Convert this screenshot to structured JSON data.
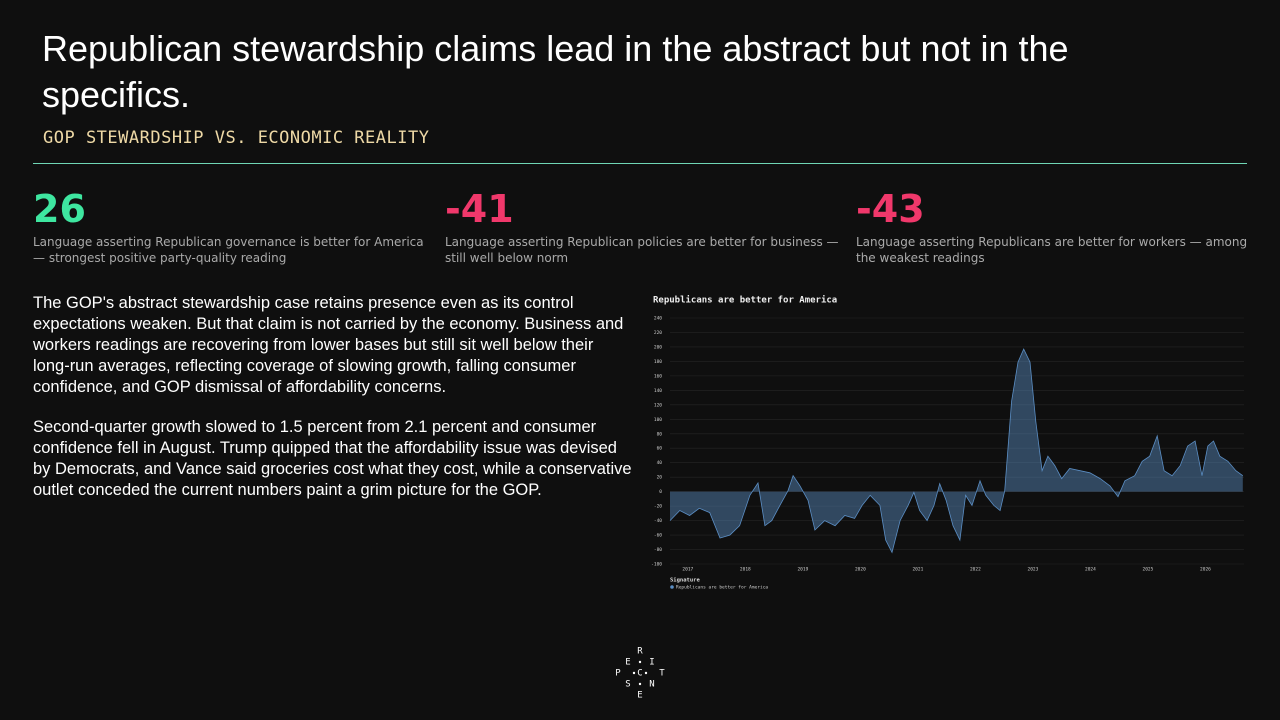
{
  "header": {
    "title": "Republican stewardship claims lead in the abstract but not in the specifics.",
    "subtitle": "GOP STEWARDSHIP VS. ECONOMIC REALITY"
  },
  "stats": [
    {
      "value": 26,
      "caption": "Language asserting Republican governance is better for America — strongest positive party-quality reading"
    },
    {
      "value": -41,
      "caption": "Language asserting Republican policies are better for business — still well below norm"
    },
    {
      "value": -43,
      "caption": "Language asserting Republicans are better for workers — among the weakest readings"
    }
  ],
  "body": [
    "The GOP's abstract stewardship case retains presence even as its control expectations weaken. But that claim is not carried by the economy. Business and workers readings are recovering from lower bases but still sit well below their long-run averages, reflecting coverage of slowing growth, falling consumer confidence, and GOP dismissal of affordability concerns.",
    "Second-quarter growth slowed to 1.5 percent from 2.1 percent and consumer confidence fell in August. Trump quipped that the affordability issue was devised by Democrats, and Vance said groceries cost what they cost, while a conservative outlet conceded the current numbers paint a grim picture for the GOP."
  ],
  "chart_data": {
    "type": "area",
    "title": "Republicans are better for America",
    "legend_title": "Signature",
    "x": [
      2016.69,
      2016.86,
      2017.03,
      2017.2,
      2017.38,
      2017.56,
      2017.73,
      2017.9,
      2018.08,
      2018.22,
      2018.34,
      2018.46,
      2018.6,
      2018.74,
      2018.83,
      2018.95,
      2019.09,
      2019.21,
      2019.38,
      2019.56,
      2019.73,
      2019.9,
      2020.03,
      2020.17,
      2020.34,
      2020.44,
      2020.55,
      2020.69,
      2020.83,
      2020.93,
      2021.03,
      2021.16,
      2021.28,
      2021.38,
      2021.49,
      2021.61,
      2021.73,
      2021.83,
      2021.94,
      2022.08,
      2022.18,
      2022.32,
      2022.43,
      2022.51,
      2022.63,
      2022.74,
      2022.84,
      2022.95,
      2023.05,
      2023.16,
      2023.26,
      2023.38,
      2023.5,
      2023.64,
      2023.82,
      2023.99,
      2024.17,
      2024.34,
      2024.48,
      2024.6,
      2024.77,
      2024.9,
      2025.03,
      2025.16,
      2025.28,
      2025.42,
      2025.56,
      2025.69,
      2025.82,
      2025.94,
      2026.04,
      2026.14,
      2026.25,
      2026.39,
      2026.53,
      2026.65
    ],
    "series": [
      {
        "name": "Republicans are better for America",
        "color": "#5b8ec4",
        "values": [
          -40,
          -26,
          -33,
          -23,
          -29,
          -64,
          -60,
          -47,
          -5,
          12,
          -47,
          -40,
          -19,
          1,
          22,
          8,
          -12,
          -53,
          -40,
          -47,
          -33,
          -37,
          -19,
          -5,
          -19,
          -67,
          -84,
          -40,
          -19,
          -1,
          -26,
          -40,
          -19,
          11,
          -12,
          -47,
          -67,
          -5,
          -19,
          15,
          -5,
          -19,
          -26,
          1,
          125,
          179,
          197,
          179,
          97,
          29,
          49,
          36,
          18,
          32,
          29,
          26,
          18,
          8,
          -7,
          15,
          22,
          42,
          49,
          77,
          29,
          22,
          36,
          63,
          70,
          22,
          63,
          70,
          49,
          42,
          29,
          22
        ]
      }
    ],
    "xlim": [
      2016.69,
      2026.67
    ],
    "xticks": [
      2017,
      2018,
      2019,
      2020,
      2021,
      2022,
      2023,
      2024,
      2025,
      2026
    ],
    "ylim": [
      -100,
      240
    ],
    "yticks": [
      -100,
      -80,
      -60,
      -40,
      -20,
      0,
      20,
      40,
      60,
      80,
      100,
      120,
      140,
      160,
      180,
      200,
      220,
      240
    ],
    "grid": true
  },
  "logo": {
    "letters": [
      "R",
      "E",
      "I",
      "P",
      "C",
      "T",
      "S",
      "N",
      "E"
    ]
  }
}
